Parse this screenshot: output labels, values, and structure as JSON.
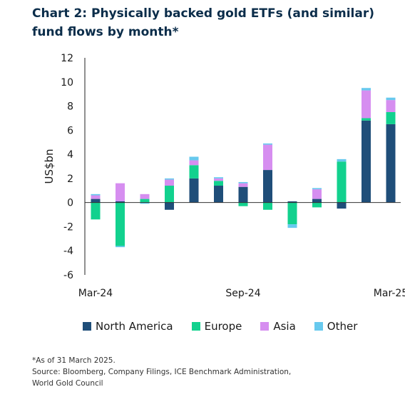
{
  "title": "Chart 2: Physically backed gold ETFs (and similar) fund flows by month*",
  "notes": [
    "*As of 31 March 2025.",
    "Source: Bloomberg, Company Filings, ICE Benchmark Administration,",
    "World Gold Council"
  ],
  "colors": {
    "North America": "#1f4e79",
    "Europe": "#12d18e",
    "Asia": "#d68ef0",
    "Other": "#67c9ee"
  },
  "chart_data": {
    "type": "bar",
    "stacked": true,
    "ylabel": "US$bn",
    "ylim": [
      -6,
      12
    ],
    "yticks": [
      -6,
      -4,
      -2,
      0,
      2,
      4,
      6,
      8,
      10,
      12
    ],
    "categories": [
      "Mar-24",
      "Apr-24",
      "May-24",
      "Jun-24",
      "Jul-24",
      "Aug-24",
      "Sep-24",
      "Oct-24",
      "Nov-24",
      "Dec-24",
      "Jan-25",
      "Feb-25",
      "Mar-25"
    ],
    "xtick_labels": [
      "Mar-24",
      "",
      "",
      "",
      "",
      "",
      "Sep-24",
      "",
      "",
      "",
      "",
      "",
      "Mar-25"
    ],
    "series": [
      {
        "name": "North America",
        "values": [
          0.3,
          0.1,
          0.0,
          -0.6,
          2.0,
          1.4,
          1.3,
          2.7,
          0.1,
          0.3,
          -0.5,
          6.8,
          6.5
        ]
      },
      {
        "name": "Europe",
        "values": [
          -1.4,
          -3.6,
          0.3,
          1.4,
          1.1,
          0.4,
          -0.3,
          -0.6,
          -1.8,
          -0.4,
          3.4,
          0.2,
          1.0
        ]
      },
      {
        "name": "Asia",
        "values": [
          0.3,
          1.5,
          0.4,
          0.5,
          0.4,
          0.2,
          0.3,
          2.1,
          0.0,
          0.8,
          0.0,
          2.3,
          1.0
        ]
      },
      {
        "name": "Other",
        "values": [
          0.1,
          -0.1,
          -0.1,
          0.1,
          0.3,
          0.1,
          0.1,
          0.1,
          -0.3,
          0.1,
          0.2,
          0.2,
          0.2
        ]
      }
    ]
  }
}
